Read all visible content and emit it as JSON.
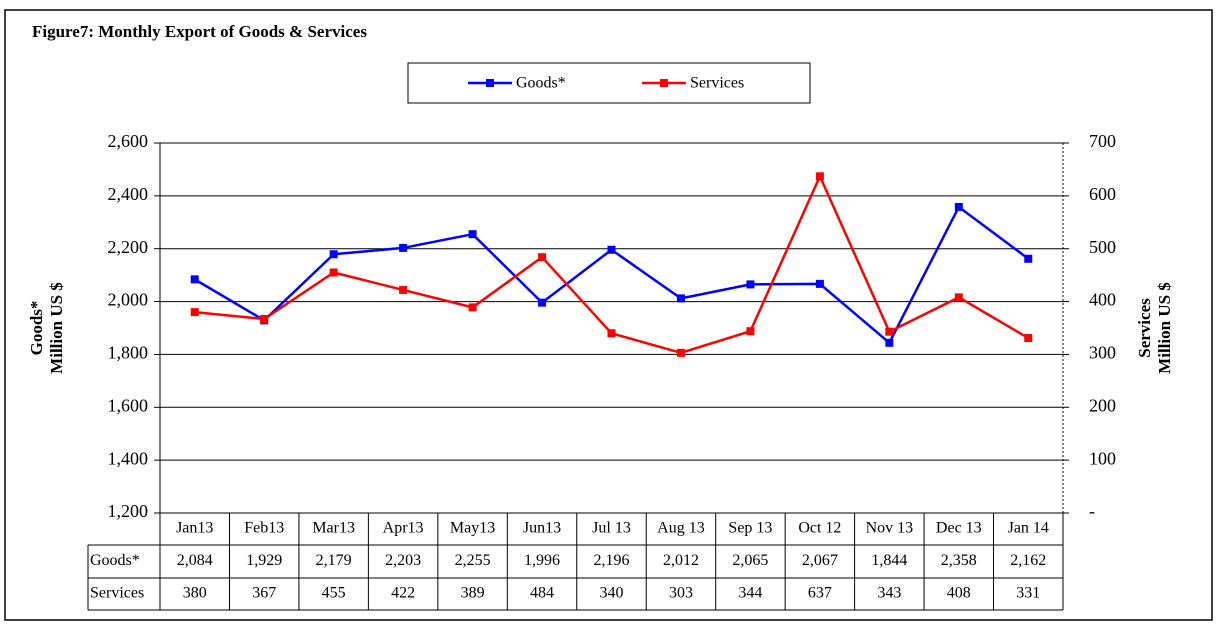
{
  "chart_data": {
    "type": "line",
    "title": "Figure7: Monthly Export of Goods & Services",
    "categories": [
      "Jan13",
      "Feb13",
      "Mar13",
      "Apr13",
      "May13",
      "Jun13",
      "Jul 13",
      "Aug 13",
      "Sep 13",
      "Oct 12",
      "Nov 13",
      "Dec 13",
      "Jan 14"
    ],
    "series": [
      {
        "name": "Goods*",
        "color": "#0000ff",
        "values": [
          2084,
          1929,
          2179,
          2203,
          2255,
          1996,
          2196,
          2012,
          2065,
          2067,
          1844,
          2358,
          2162
        ],
        "value_labels": [
          "2,084",
          "1,929",
          "2,179",
          "2,203",
          "2,255",
          "1,996",
          "2,196",
          "2,012",
          "2,065",
          "2,067",
          "1,844",
          "2,358",
          "2,162"
        ]
      },
      {
        "name": "Services",
        "color": "#ff0000",
        "axis": "y2",
        "values": [
          380,
          367,
          455,
          422,
          389,
          484,
          340,
          303,
          344,
          637,
          343,
          408,
          331
        ]
      }
    ],
    "ylabel": [
      "Goods*",
      "Million US $"
    ],
    "y2label": [
      "Services",
      "Million US $"
    ],
    "ylim": [
      1200,
      2600
    ],
    "yticks": [
      {
        "value": 1200,
        "label": "1,200"
      },
      {
        "value": 1400,
        "label": "1,400"
      },
      {
        "value": 1600,
        "label": "1,600"
      },
      {
        "value": 1800,
        "label": "1,800"
      },
      {
        "value": 2000,
        "label": "2,000"
      },
      {
        "value": 2200,
        "label": "2,200"
      },
      {
        "value": 2400,
        "label": "2,400"
      },
      {
        "value": 2600,
        "label": "2,600"
      }
    ],
    "y2lim": [
      0,
      700
    ],
    "y2ticks": [
      {
        "value": 0,
        "label": "-"
      },
      100,
      200,
      300,
      400,
      500,
      600,
      700
    ],
    "grid": true,
    "legend": "top"
  }
}
